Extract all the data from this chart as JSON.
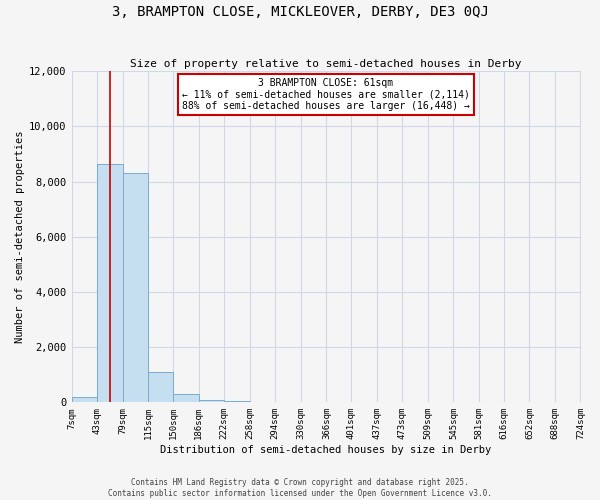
{
  "title": "3, BRAMPTON CLOSE, MICKLEOVER, DERBY, DE3 0QJ",
  "subtitle": "Size of property relative to semi-detached houses in Derby",
  "xlabel": "Distribution of semi-detached houses by size in Derby",
  "ylabel": "Number of semi-detached properties",
  "annotation_title": "3 BRAMPTON CLOSE: 61sqm",
  "annotation_line1": "← 11% of semi-detached houses are smaller (2,114)",
  "annotation_line2": "88% of semi-detached houses are larger (16,448) →",
  "property_size": 61,
  "property_line_color": "#cc0000",
  "bar_color": "#c5dff0",
  "bar_edge_color": "#7aabcf",
  "annotation_box_color": "#ffffff",
  "annotation_box_edge": "#cc0000",
  "background_color": "#f5f5f5",
  "grid_color": "#d0d8e8",
  "footer_line1": "Contains HM Land Registry data © Crown copyright and database right 2025.",
  "footer_line2": "Contains public sector information licensed under the Open Government Licence v3.0.",
  "bins": [
    7,
    43,
    79,
    115,
    150,
    186,
    222,
    258,
    294,
    330,
    366,
    401,
    437,
    473,
    509,
    545,
    581,
    616,
    652,
    688,
    724
  ],
  "counts": [
    200,
    8650,
    8300,
    1100,
    300,
    100,
    50,
    10,
    5,
    3,
    2,
    2,
    1,
    1,
    1,
    1,
    0,
    0,
    0,
    0
  ],
  "ylim": [
    0,
    12000
  ],
  "yticks": [
    0,
    2000,
    4000,
    6000,
    8000,
    10000,
    12000
  ]
}
